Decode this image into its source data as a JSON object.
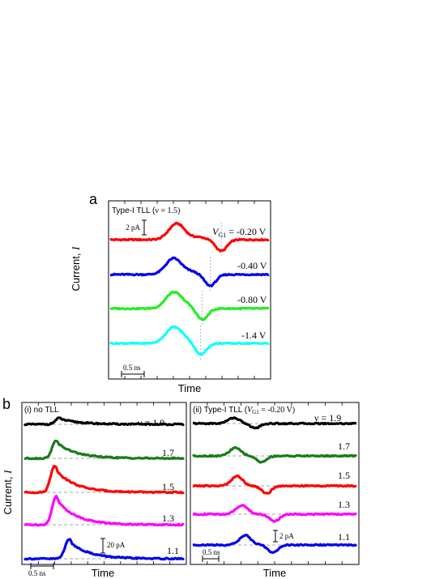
{
  "panel_a": {
    "letter": "a",
    "title": "Type-I TLL (",
    "title_nu": "ν = 1.5)",
    "scale_bar_current": "2 pA",
    "scale_bar_time": "0.5 ns",
    "ylabel": "Current, ",
    "ylabel_symbol": "I",
    "xlabel": "Time",
    "vg_label_prefix": "V",
    "vg_label_sub": "G1",
    "traces": [
      {
        "label": " = -0.20 V",
        "color": "#ff0000",
        "peak_t": 0.42,
        "dip_t": 0.7,
        "amp": 1.0
      },
      {
        "label": "-0.40 V",
        "color": "#0000ee",
        "peak_t": 0.4,
        "dip_t": 0.63,
        "amp": 1.0
      },
      {
        "label": "-0.80 V",
        "color": "#22ee22",
        "peak_t": 0.4,
        "dip_t": 0.58,
        "amp": 1.0
      },
      {
        "label": "-1.4 V",
        "color": "#11ffff",
        "peak_t": 0.4,
        "dip_t": 0.57,
        "amp": 1.0
      }
    ]
  },
  "panel_b": {
    "letter": "b",
    "ylabel": "Current, ",
    "ylabel_symbol": "I",
    "left": {
      "title": "(i) no TLL",
      "scale_bar_current": "20 pA",
      "scale_bar_time": "0.5 ns",
      "xlabel": "Time",
      "nu_prefix": "ν = ",
      "traces": [
        {
          "label": "1.9",
          "color": "#000000",
          "peak_t": 0.22,
          "amp": 0.35
        },
        {
          "label": "1.7",
          "color": "#1a7a1a",
          "peak_t": 0.2,
          "amp": 1.0
        },
        {
          "label": "1.5",
          "color": "#ff0000",
          "peak_t": 0.19,
          "amp": 1.5
        },
        {
          "label": "1.3",
          "color": "#ff00ff",
          "peak_t": 0.2,
          "amp": 1.6
        },
        {
          "label": "1.1",
          "color": "#0000ee",
          "peak_t": 0.28,
          "amp": 1.1
        }
      ]
    },
    "right": {
      "title": "(ii) Type-I TLL (",
      "title_vg": "V",
      "title_vg_sub": "G1",
      "title_suffix": " = -0.20 V)",
      "scale_bar_current": "2 pA",
      "scale_bar_time": "0.5 ns",
      "xlabel": "Time",
      "nu_prefix": "ν = ",
      "traces": [
        {
          "label": "1.9",
          "color": "#000000",
          "peak_t": 0.25,
          "dip_t": 0.38,
          "amp": 0.5
        },
        {
          "label": "1.7",
          "color": "#1a7a1a",
          "peak_t": 0.26,
          "dip_t": 0.42,
          "amp": 0.7
        },
        {
          "label": "1.5",
          "color": "#ff0000",
          "peak_t": 0.27,
          "dip_t": 0.45,
          "amp": 0.85
        },
        {
          "label": "1.3",
          "color": "#ff00ff",
          "peak_t": 0.3,
          "dip_t": 0.5,
          "amp": 0.8
        },
        {
          "label": "1.1",
          "color": "#0000ee",
          "peak_t": 0.32,
          "dip_t": 0.49,
          "amp": 0.85
        }
      ]
    }
  },
  "chart_data": [
    {
      "type": "line",
      "title": "Type-I TLL (ν = 1.5)",
      "xlabel": "Time",
      "ylabel": "Current, I",
      "series": [
        {
          "name": "VG1 = -0.20 V",
          "values": []
        },
        {
          "name": "-0.40 V",
          "values": []
        },
        {
          "name": "-0.80 V",
          "values": []
        },
        {
          "name": "-1.4 V",
          "values": []
        }
      ]
    },
    {
      "type": "line",
      "title": "(i) no TLL",
      "xlabel": "Time",
      "ylabel": "Current, I",
      "series": [
        {
          "name": "ν = 1.9",
          "values": []
        },
        {
          "name": "1.7",
          "values": []
        },
        {
          "name": "1.5",
          "values": []
        },
        {
          "name": "1.3",
          "values": []
        },
        {
          "name": "1.1",
          "values": []
        }
      ]
    },
    {
      "type": "line",
      "title": "(ii) Type-I TLL (VG1 = -0.20 V)",
      "xlabel": "Time",
      "ylabel": "Current, I",
      "series": [
        {
          "name": "ν = 1.9",
          "values": []
        },
        {
          "name": "1.7",
          "values": []
        },
        {
          "name": "1.5",
          "values": []
        },
        {
          "name": "1.3",
          "values": []
        },
        {
          "name": "1.1",
          "values": []
        }
      ]
    }
  ]
}
